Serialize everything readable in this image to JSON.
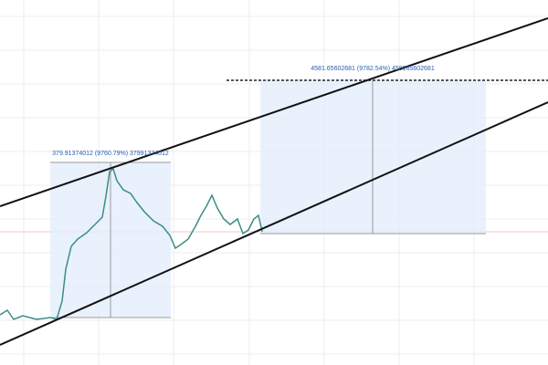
{
  "measure_left": {
    "label": "379.91374012 (9760.79%) 37991374012"
  },
  "measure_right": {
    "label": "4581.65602681 (9782.54%) 458165602681"
  }
}
